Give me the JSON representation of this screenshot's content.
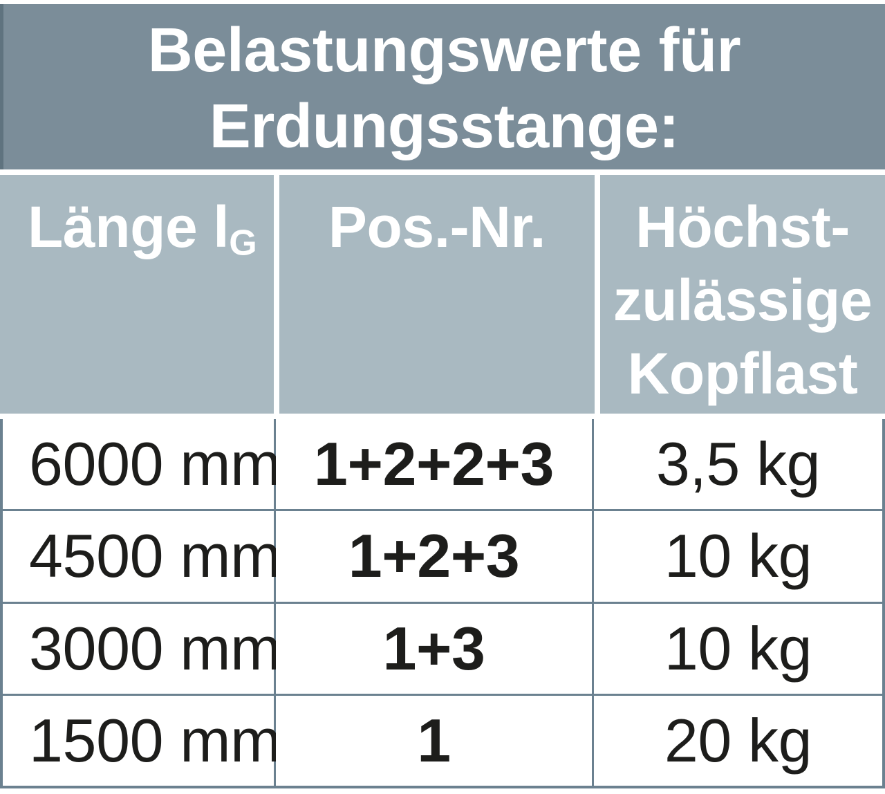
{
  "title": {
    "lines": [
      "Belastungswerte für",
      "Erdungsstange:"
    ]
  },
  "columns": [
    {
      "label": "Länge l",
      "subscript": "G"
    },
    {
      "label": "Pos.-Nr."
    },
    {
      "lines": [
        "Höchst-",
        "zulässige",
        "Kopflast"
      ]
    }
  ],
  "rows": [
    {
      "length": "6000 mm",
      "pos": "1+2+2+3",
      "load": "3,5 kg"
    },
    {
      "length": "4500 mm",
      "pos": "1+2+3",
      "load": "10 kg"
    },
    {
      "length": "3000 mm",
      "pos": "1+3",
      "load": "10 kg"
    },
    {
      "length": "1500 mm",
      "pos": "1",
      "load": "20 kg"
    }
  ],
  "colors": {
    "title_background": "#7b8d99",
    "header_background": "#a9b9c1",
    "grid_line": "#6b8190",
    "cell_background": "#ffffff",
    "header_text": "#ffffff",
    "data_text": "#1d1d1b"
  }
}
